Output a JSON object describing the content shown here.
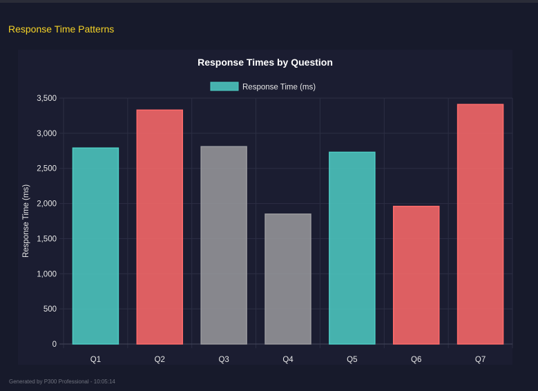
{
  "section_title": "Response Time Patterns",
  "footer": "Generated by P300 Professional - 10:05:14",
  "chart_data": {
    "type": "bar",
    "title": "Response Times by Question",
    "xlabel": "",
    "ylabel": "Response Time (ms)",
    "categories": [
      "Q1",
      "Q2",
      "Q3",
      "Q4",
      "Q5",
      "Q6",
      "Q7"
    ],
    "series": [
      {
        "name": "Response Time (ms)",
        "values": [
          2790,
          3330,
          2810,
          1850,
          2730,
          1960,
          3410
        ]
      }
    ],
    "bar_colors": [
      "#4ecdc4",
      "#ff6b6b",
      "#9a9a9e",
      "#9a9a9e",
      "#4ecdc4",
      "#ff6b6b",
      "#ff6b6b"
    ],
    "ylim": [
      0,
      3500
    ],
    "yticks": [
      0,
      500,
      1000,
      1500,
      2000,
      2500,
      3000,
      3500
    ],
    "ytick_labels": [
      "0",
      "500",
      "1,000",
      "1,500",
      "2,000",
      "2,500",
      "3,000",
      "3,500"
    ],
    "grid": true,
    "legend": "top"
  }
}
